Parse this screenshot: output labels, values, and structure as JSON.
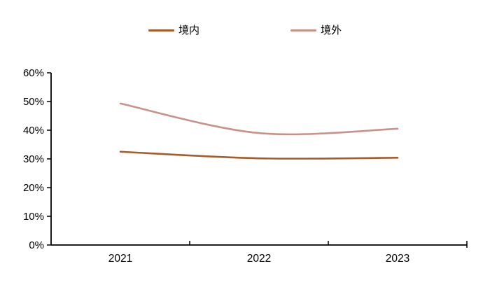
{
  "chart_data": {
    "type": "line",
    "title": "",
    "xlabel": "",
    "ylabel": "",
    "categories": [
      "2021",
      "2022",
      "2023"
    ],
    "series": [
      {
        "name": "境内",
        "color": "#A85B2B",
        "values": [
          32.5,
          30.2,
          30.4
        ]
      },
      {
        "name": "境外",
        "color": "#C9918A",
        "values": [
          49.3,
          39.0,
          40.5
        ]
      }
    ],
    "ylim": [
      0,
      60
    ],
    "y_tick_step": 10,
    "y_ticks": [
      "0%",
      "10%",
      "20%",
      "30%",
      "40%",
      "50%",
      "60%"
    ],
    "grid": false,
    "legend_position": "top",
    "line_style": "smooth",
    "axis_color": "#000000",
    "line_width": 2.6
  }
}
